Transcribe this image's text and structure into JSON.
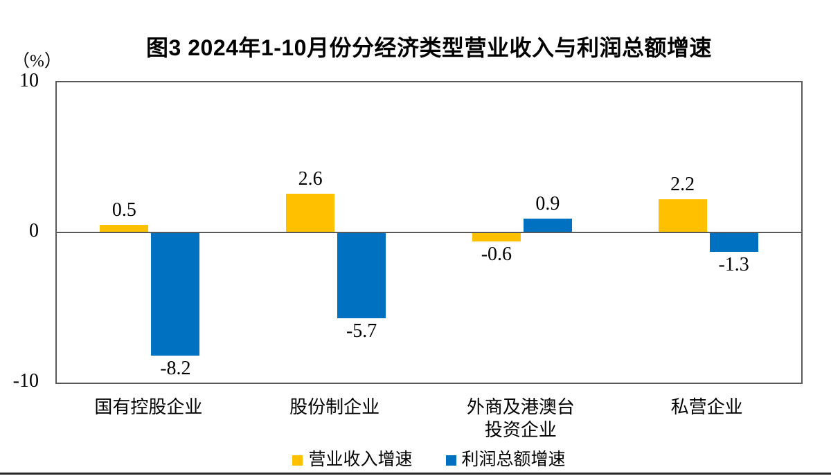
{
  "chart_data": {
    "type": "bar",
    "title": "图3 2024年1-10月份分经济类型营业收入与利润总额增速",
    "unit_label": "（%）",
    "categories": [
      "国有控股企业",
      "股份制企业",
      "外商及港澳台\n投资企业",
      "私营企业"
    ],
    "series": [
      {
        "name": "营业收入增速",
        "color": "#FFC000",
        "values": [
          0.5,
          2.6,
          -0.6,
          2.2
        ]
      },
      {
        "name": "利润总额增速",
        "color": "#0070C0",
        "values": [
          -8.2,
          -5.7,
          0.9,
          -1.3
        ]
      }
    ],
    "ylim": [
      -10,
      10
    ],
    "yticks": [
      10,
      0,
      -10
    ],
    "grid": false,
    "legend_position": "bottom",
    "colors": {
      "revenue": "#FFC000",
      "profit": "#0070C0",
      "axis_border": "#595959",
      "text": "#000000",
      "bottom_rule": "#262626"
    }
  }
}
